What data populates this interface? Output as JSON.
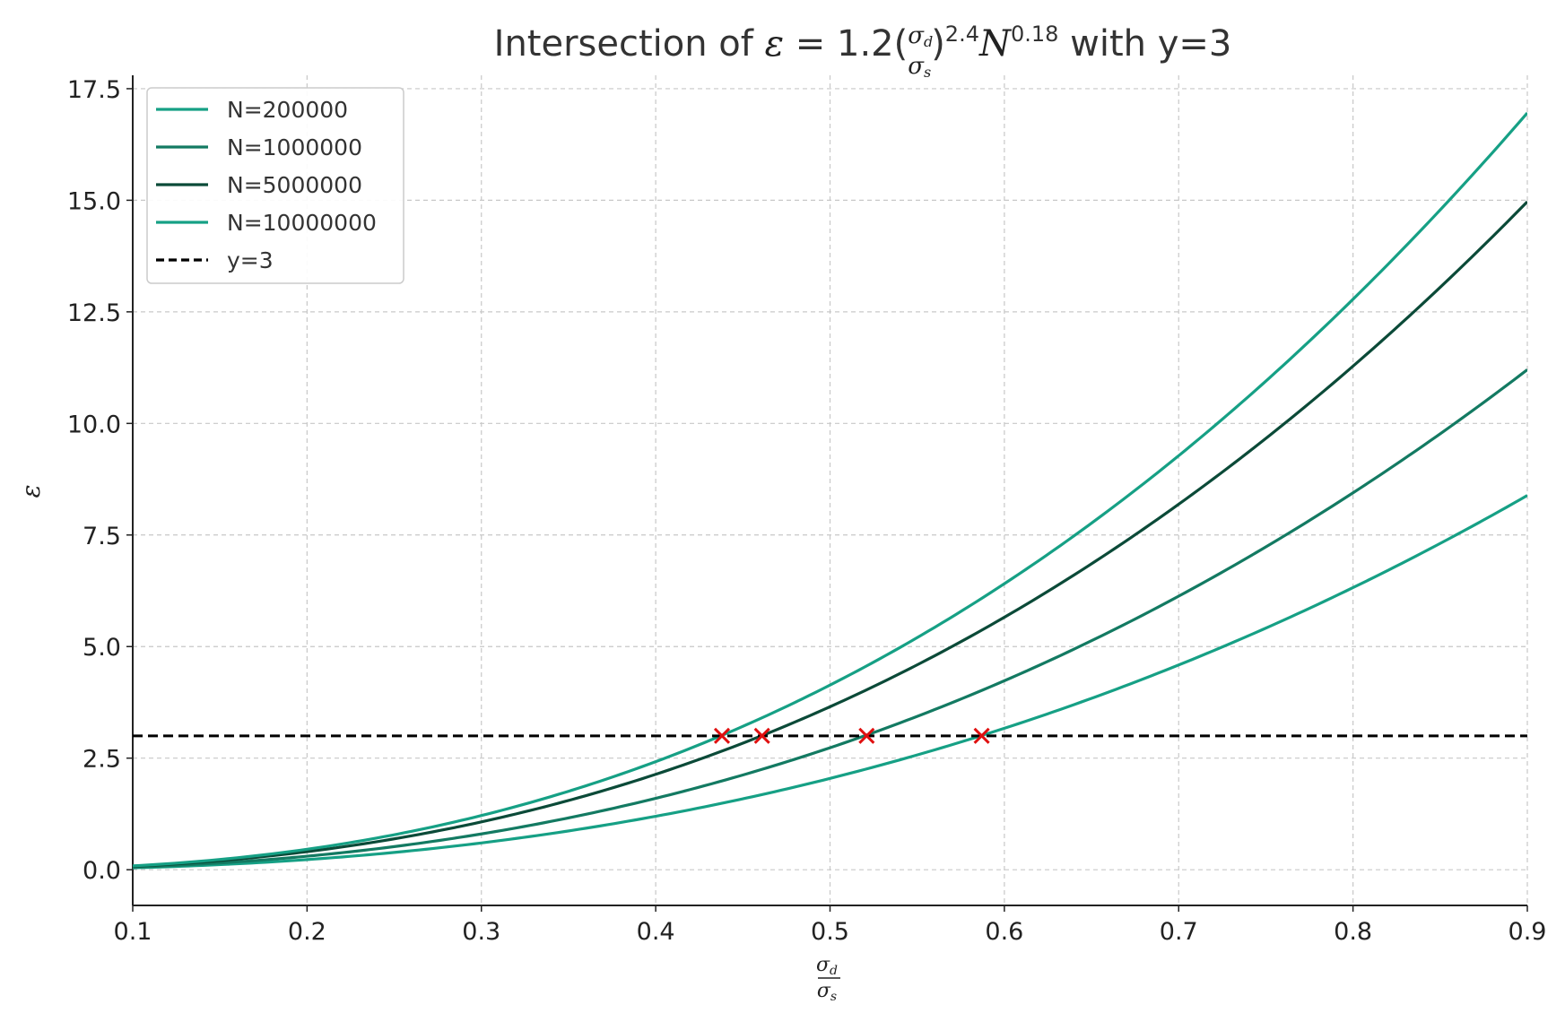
{
  "chart_data": {
    "type": "line",
    "title": {
      "prefix": "Intersection of ",
      "eps": "ε",
      "eq": " = 1.2(",
      "frac_num": "σ",
      "frac_num_sub": "d",
      "frac_den": "σ",
      "frac_den_sub": "s",
      "close": ")",
      "exp": "2.4",
      "N": "N",
      "n_exp": "0.18",
      "suffix": " with y=3"
    },
    "xlabel": {
      "num": "σ",
      "num_sub": "d",
      "den": "σ",
      "den_sub": "s"
    },
    "ylabel": "ε",
    "xlim": [
      0.1,
      0.9
    ],
    "ylim": [
      -0.8,
      17.8
    ],
    "x_ticks": [
      "0.1",
      "0.2",
      "0.3",
      "0.4",
      "0.5",
      "0.6",
      "0.7",
      "0.8",
      "0.9"
    ],
    "y_ticks": [
      "0.0",
      "2.5",
      "5.0",
      "7.5",
      "10.0",
      "12.5",
      "15.0",
      "17.5"
    ],
    "grid": true,
    "legend_position": "top-left",
    "model": {
      "coef": 1.2,
      "ratio_exp": 2.4,
      "n_exp": 0.18
    },
    "series": [
      {
        "name": "N=200000",
        "N": 200000,
        "color": "#16a085",
        "intersection_x": 0.587,
        "intersection_y": 3
      },
      {
        "name": "N=1000000",
        "N": 1000000,
        "color": "#137a62",
        "intersection_x": 0.521,
        "intersection_y": 3
      },
      {
        "name": "N=5000000",
        "N": 5000000,
        "color": "#0b4a38",
        "intersection_x": 0.461,
        "intersection_y": 3
      },
      {
        "name": "N=10000000",
        "N": 10000000,
        "color": "#16a085",
        "intersection_x": 0.438,
        "intersection_y": 3
      }
    ],
    "reference_line": {
      "name": "y=3",
      "y": 3,
      "color": "#000000",
      "style": "dashed"
    },
    "marker_color": "#e01010"
  }
}
